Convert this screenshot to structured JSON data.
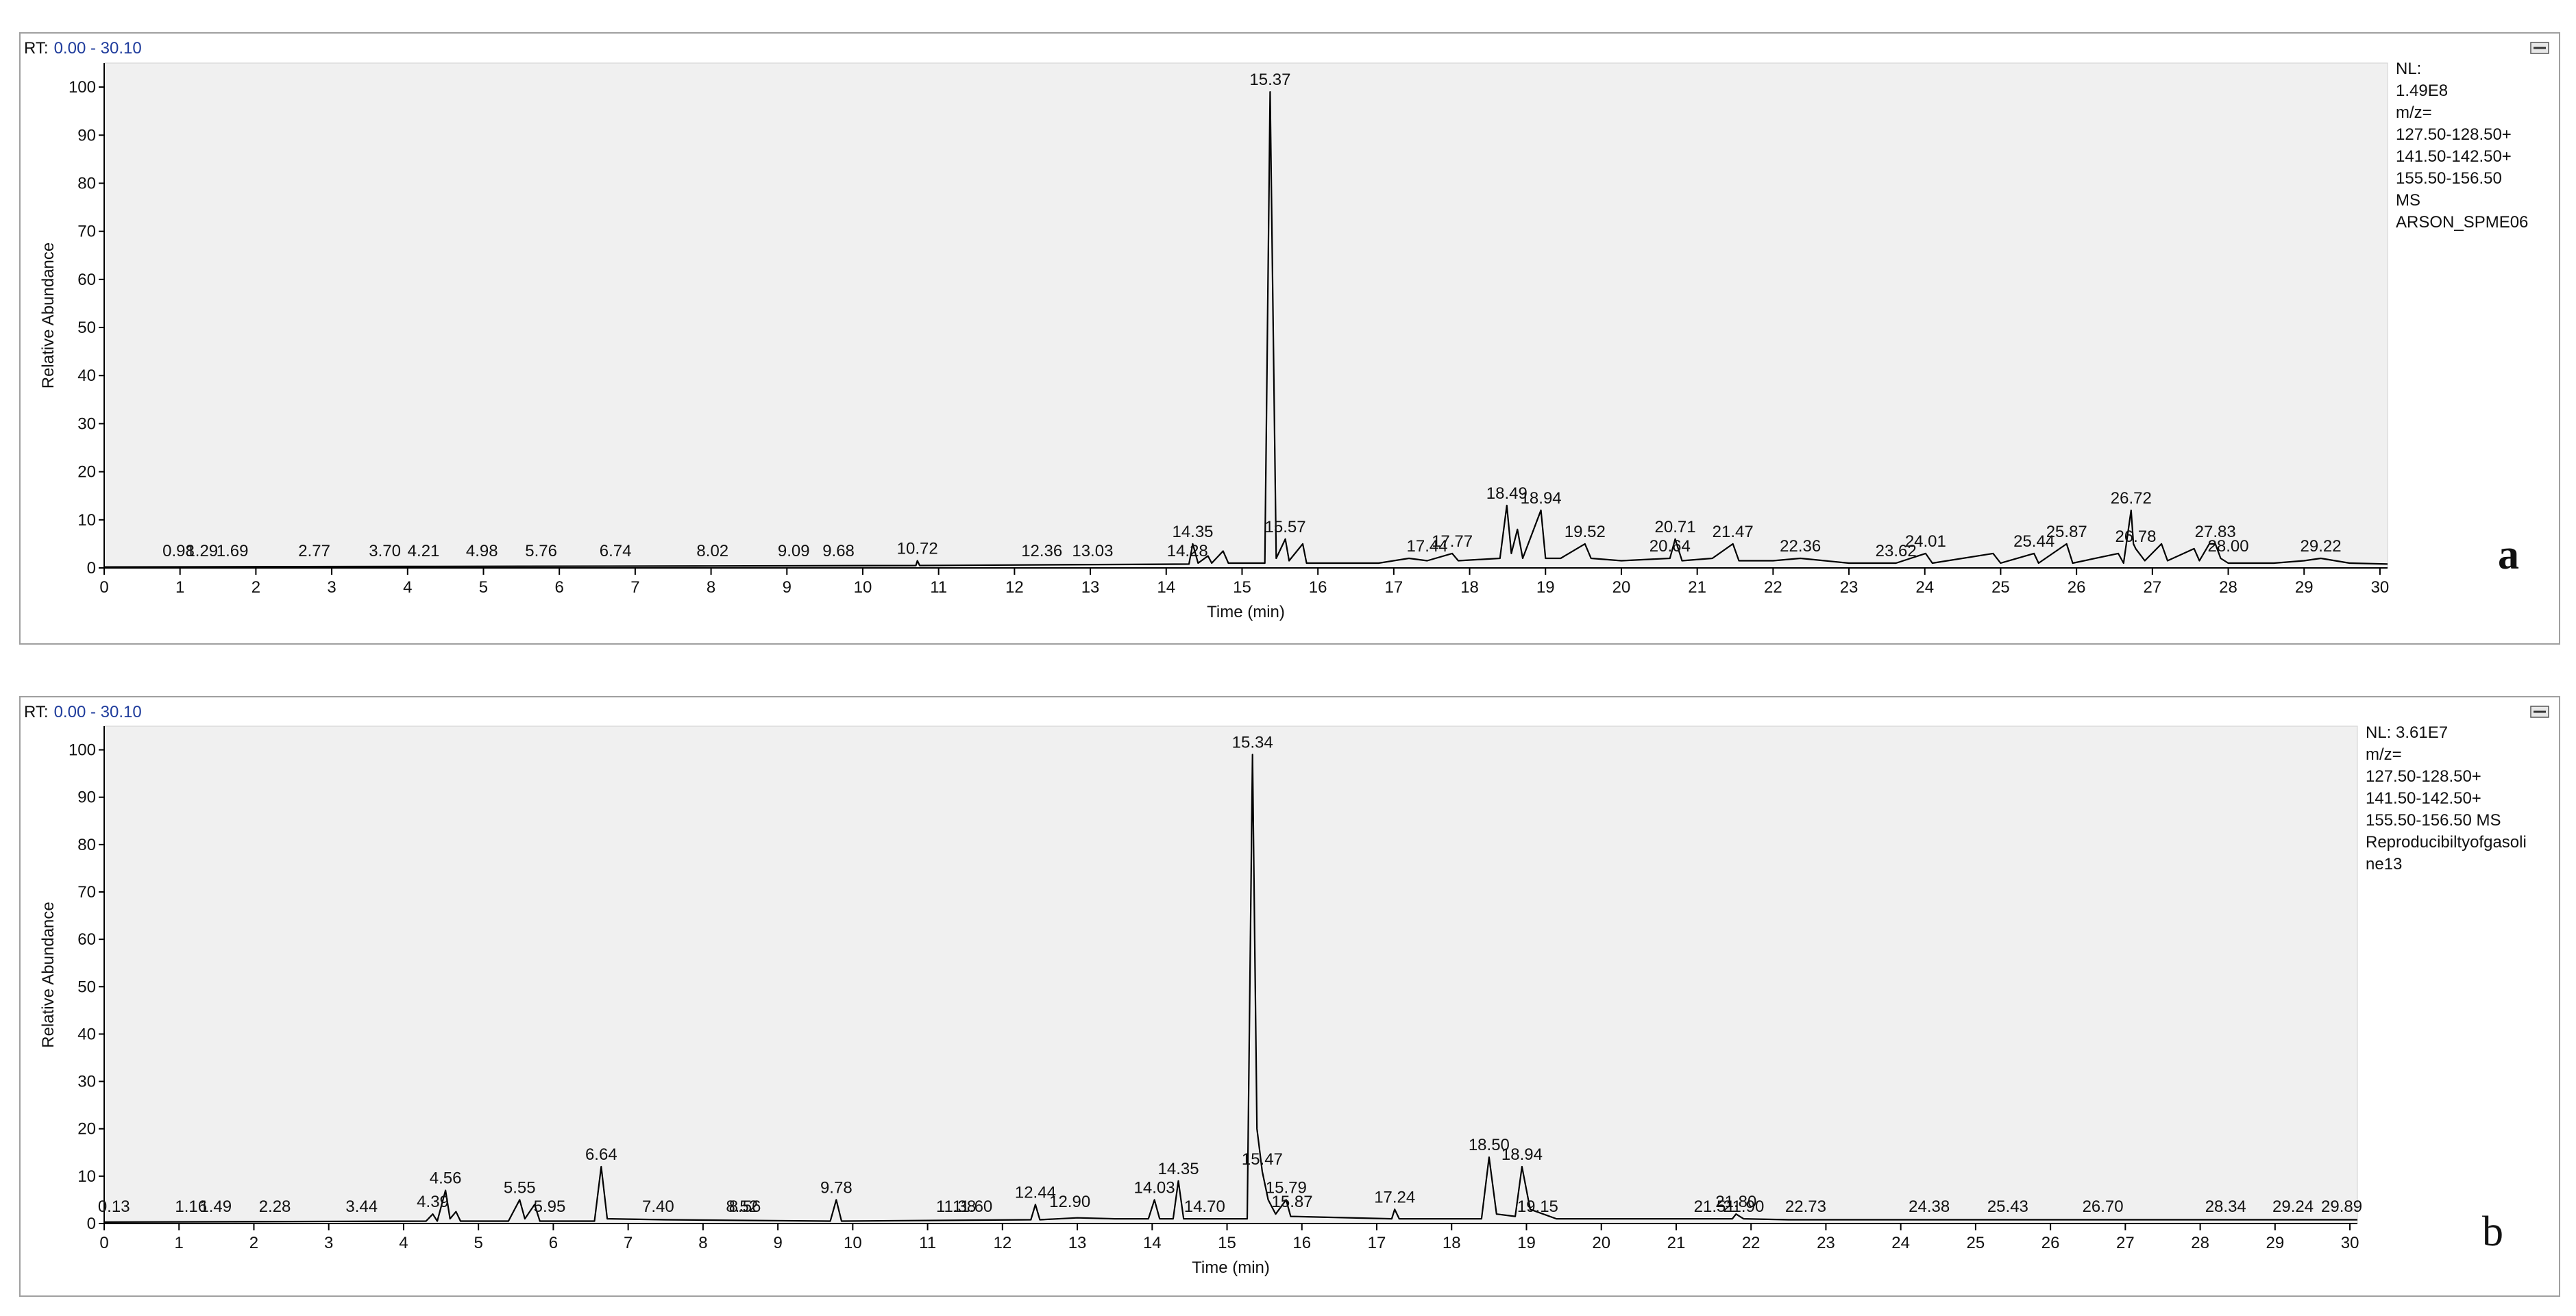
{
  "chart_data": [
    {
      "type": "line",
      "panel_label": "a",
      "rt_label": "RT:",
      "rt_range": "0.00 - 30.10",
      "info_lines": [
        "NL:",
        "1.49E8",
        "m/z=",
        "127.50-128.50+",
        "141.50-142.50+",
        "155.50-156.50",
        "MS",
        "ARSON_SPME06"
      ],
      "xlabel": "Time (min)",
      "ylabel": "Relative Abundance",
      "xlim": [
        0,
        30.1
      ],
      "ylim": [
        0,
        105
      ],
      "xticks": [
        0,
        1,
        2,
        3,
        4,
        5,
        6,
        7,
        8,
        9,
        10,
        11,
        12,
        13,
        14,
        15,
        16,
        17,
        18,
        19,
        20,
        21,
        22,
        23,
        24,
        25,
        26,
        27,
        28,
        29,
        30
      ],
      "yticks": [
        0,
        10,
        20,
        30,
        40,
        50,
        60,
        70,
        80,
        90,
        100
      ],
      "color": "#000000",
      "x": [
        0,
        4,
        8,
        10.7,
        10.72,
        10.75,
        14.3,
        14.35,
        14.42,
        14.55,
        14.6,
        14.75,
        14.82,
        15.3,
        15.37,
        15.45,
        15.57,
        15.62,
        15.8,
        15.85,
        16.8,
        17.2,
        17.44,
        17.77,
        17.85,
        18.4,
        18.49,
        18.55,
        18.63,
        18.7,
        18.94,
        19.0,
        19.2,
        19.52,
        19.6,
        20.0,
        20.64,
        20.71,
        20.8,
        21.2,
        21.47,
        21.55,
        22.0,
        22.36,
        23.0,
        23.62,
        24.01,
        24.1,
        24.9,
        25.0,
        25.44,
        25.5,
        25.87,
        25.95,
        26.55,
        26.62,
        26.72,
        26.75,
        26.78,
        26.9,
        27.12,
        27.2,
        27.55,
        27.62,
        27.75,
        27.83,
        27.9,
        28.0,
        28.6,
        29.0,
        29.22,
        29.6,
        30.1
      ],
      "y": [
        0.2,
        0.3,
        0.4,
        0.5,
        1.5,
        0.5,
        0.8,
        5,
        1,
        2.5,
        1,
        3.5,
        1,
        1,
        99,
        2,
        6,
        1.5,
        5,
        1,
        1,
        2,
        1.5,
        3,
        1.5,
        2,
        13,
        3,
        8,
        2,
        12,
        2,
        2,
        5,
        2,
        1.5,
        2,
        6,
        1.5,
        2,
        5,
        1.5,
        1.5,
        2,
        1,
        1,
        3,
        1,
        3,
        1,
        3,
        1,
        5,
        1,
        3,
        1,
        12,
        5,
        4,
        1.5,
        5,
        1.5,
        4,
        1.5,
        5,
        5,
        2,
        1,
        1,
        1.5,
        2,
        1,
        0.8
      ],
      "peak_rt": [
        0.98,
        1.29,
        1.69,
        2.77,
        3.7,
        4.21,
        4.98,
        5.76,
        6.74,
        8.02,
        9.09,
        9.68,
        10.72,
        12.36,
        13.03,
        14.28,
        14.35,
        15.37,
        15.57,
        17.44,
        17.77,
        18.49,
        18.94,
        19.52,
        20.64,
        20.71,
        21.47,
        22.36,
        23.62,
        24.01,
        25.44,
        25.87,
        26.72,
        26.78,
        27.83,
        28.0,
        29.22
      ],
      "peak_labels": [
        "0.98",
        "1.29",
        "1.69",
        "2.77",
        "3.70",
        "4.21",
        "4.98",
        "5.76",
        "6.74",
        "8.02",
        "9.09",
        "9.68",
        "10.72",
        "12.36",
        "13.03",
        "14.28",
        "14.35",
        "15.37",
        "15.57",
        "17.44",
        "17.77",
        "18.49",
        "18.94",
        "19.52",
        "20.64",
        "20.71",
        "21.47",
        "22.36",
        "23.62",
        "24.01",
        "25.44",
        "25.87",
        "26.72",
        "26.78",
        "27.83",
        "28.00",
        "29.22"
      ],
      "peak_height": [
        1,
        1,
        1,
        1,
        1,
        1,
        1,
        1,
        1,
        1,
        1,
        1,
        1.5,
        1,
        1,
        1,
        5,
        99,
        6,
        2,
        3,
        13,
        12,
        5,
        2,
        6,
        5,
        2,
        1,
        3,
        3,
        5,
        12,
        4,
        5,
        2,
        2
      ]
    },
    {
      "type": "line",
      "panel_label": "b",
      "rt_label": "RT:",
      "rt_range": "0.00 - 30.10",
      "info_lines": [
        "NL: 3.61E7",
        "m/z=",
        "127.50-128.50+",
        "141.50-142.50+",
        "155.50-156.50  MS",
        "Reproducibiltyofgasoli",
        "ne13"
      ],
      "xlabel": "Time (min)",
      "ylabel": "Relative Abundance",
      "xlim": [
        0,
        30.1
      ],
      "ylim": [
        0,
        105
      ],
      "xticks": [
        0,
        1,
        2,
        3,
        4,
        5,
        6,
        7,
        8,
        9,
        10,
        11,
        12,
        13,
        14,
        15,
        16,
        17,
        18,
        19,
        20,
        21,
        22,
        23,
        24,
        25,
        26,
        27,
        28,
        29,
        30
      ],
      "yticks": [
        0,
        10,
        20,
        30,
        40,
        50,
        60,
        70,
        80,
        90,
        100
      ],
      "color": "#000000",
      "x": [
        0,
        4.3,
        4.39,
        4.45,
        4.56,
        4.62,
        4.7,
        4.76,
        5.4,
        5.55,
        5.62,
        5.75,
        5.82,
        6.55,
        6.64,
        6.72,
        7.5,
        9.7,
        9.78,
        9.85,
        12.38,
        12.44,
        12.5,
        13.0,
        13.5,
        13.95,
        14.03,
        14.1,
        14.28,
        14.35,
        14.42,
        15.27,
        15.34,
        15.4,
        15.47,
        15.55,
        15.65,
        15.79,
        15.85,
        17.2,
        17.24,
        17.3,
        18.4,
        18.5,
        18.6,
        18.85,
        18.94,
        19.05,
        19.4,
        21.75,
        21.8,
        21.9,
        22.5,
        30.1
      ],
      "y": [
        0.3,
        0.5,
        2,
        0.5,
        7,
        1,
        2.5,
        0.5,
        0.5,
        5,
        1,
        4,
        0.5,
        0.5,
        12,
        1,
        0.8,
        0.5,
        5,
        0.5,
        0.8,
        4,
        0.8,
        1.2,
        1,
        1,
        5,
        1,
        1,
        9,
        1,
        1,
        99,
        20,
        11,
        5,
        2,
        5,
        1.5,
        1,
        3,
        1,
        1,
        14,
        2,
        1.5,
        12,
        3,
        1,
        1,
        2,
        1,
        0.8,
        0.8
      ],
      "peak_rt": [
        0.13,
        1.16,
        1.49,
        2.28,
        3.44,
        4.39,
        4.56,
        5.55,
        5.95,
        6.64,
        7.4,
        8.52,
        8.56,
        9.78,
        11.38,
        11.6,
        12.44,
        12.9,
        14.03,
        14.35,
        14.7,
        15.34,
        15.47,
        15.79,
        15.87,
        17.24,
        18.5,
        18.94,
        19.15,
        21.51,
        21.8,
        21.9,
        22.73,
        24.38,
        25.43,
        26.7,
        28.34,
        29.24,
        29.89
      ],
      "peak_labels": [
        "0.13",
        "1.16",
        "1.49",
        "2.28",
        "3.44",
        "4.39",
        "4.56",
        "5.55",
        "5.95",
        "6.64",
        "7.40",
        "8.52",
        "8.56",
        "9.78",
        "11.38",
        "11.60",
        "12.44",
        "12.90",
        "14.03",
        "14.35",
        "14.70",
        "15.34",
        "15.47",
        "15.79",
        "15.87",
        "17.24",
        "18.50",
        "18.94",
        "19.15",
        "21.51",
        "21.80",
        "21.90",
        "22.73",
        "24.38",
        "25.43",
        "26.70",
        "28.34",
        "29.24",
        "29.89"
      ],
      "peak_height": [
        1,
        1,
        1,
        1,
        1,
        2,
        7,
        5,
        1,
        12,
        1,
        1,
        1,
        5,
        1,
        1,
        4,
        2,
        5,
        9,
        1,
        99,
        11,
        5,
        2,
        3,
        14,
        12,
        1,
        1,
        2,
        1,
        1,
        1,
        1,
        1,
        1,
        1,
        1
      ]
    }
  ]
}
